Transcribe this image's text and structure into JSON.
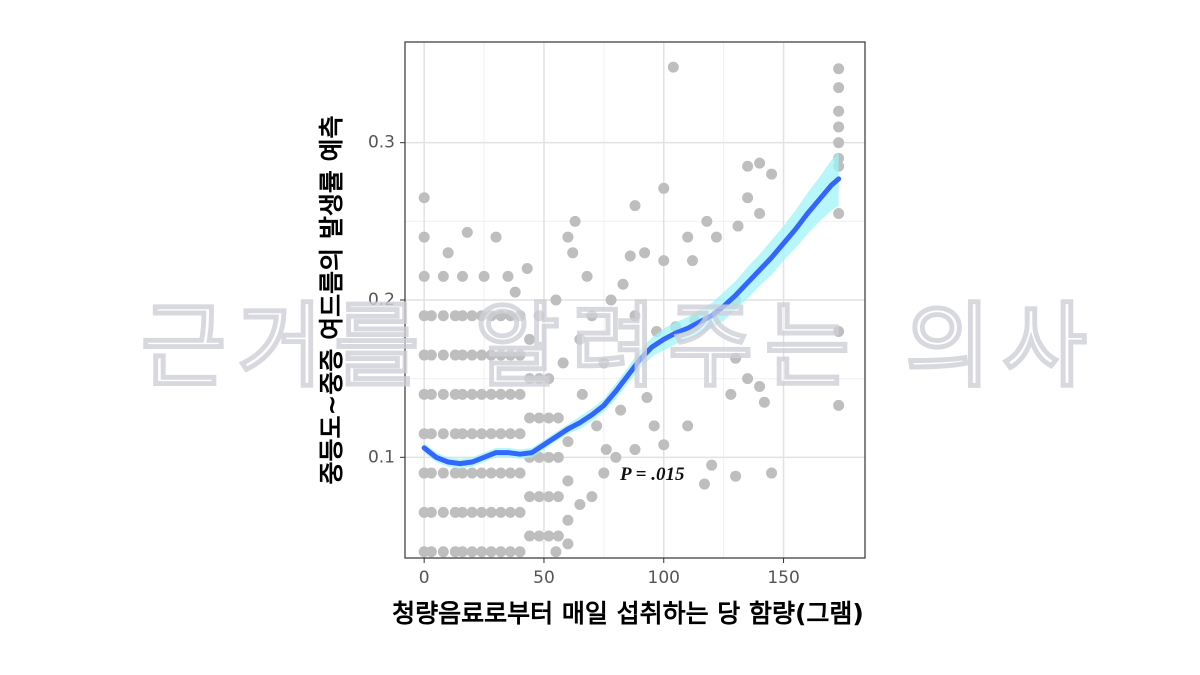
{
  "chart_data": {
    "type": "scatter",
    "x_label": "청량음료로부터 매일 섭취하는 당 함량(그램)",
    "y_label": "중등도~중증 여드름의 발생률 예측",
    "annotation": "P = .015",
    "watermark": "근거를 알려주는 의사",
    "xlim": [
      -8,
      184
    ],
    "ylim": [
      0.036,
      0.364
    ],
    "xticks": [
      0,
      50,
      100,
      150
    ],
    "yticks": [
      0.1,
      0.2,
      0.3
    ],
    "grid": true,
    "points": {
      "color": "#bebebe",
      "x": [
        0,
        0,
        0,
        0,
        0,
        0,
        0,
        0,
        0,
        3,
        3,
        3,
        3,
        3,
        3,
        3,
        8,
        8,
        8,
        8,
        8,
        8,
        8,
        8,
        13,
        13,
        13,
        13,
        13,
        13,
        13,
        16,
        16,
        16,
        16,
        16,
        16,
        16,
        16,
        20,
        20,
        20,
        20,
        20,
        20,
        20,
        24,
        24,
        24,
        24,
        24,
        24,
        24,
        28,
        28,
        28,
        28,
        28,
        28,
        28,
        32,
        32,
        32,
        32,
        32,
        32,
        32,
        36,
        36,
        36,
        36,
        36,
        36,
        36,
        40,
        40,
        40,
        40,
        40,
        40,
        40,
        44,
        44,
        44,
        44,
        44,
        44,
        48,
        48,
        48,
        48,
        48,
        52,
        52,
        52,
        52,
        52,
        56,
        56,
        56,
        56,
        60,
        60,
        60,
        104,
        173,
        173,
        173,
        173,
        173,
        173,
        173,
        173,
        173,
        173,
        140,
        135,
        135,
        140,
        145,
        131,
        100,
        88,
        118,
        122,
        110,
        92,
        100,
        112,
        86,
        130,
        113,
        105,
        97,
        78,
        83,
        88,
        130,
        128,
        140,
        135,
        142,
        110,
        100,
        88,
        120,
        130,
        145,
        117,
        96,
        82,
        93,
        75,
        70,
        65,
        60,
        62,
        55,
        63,
        68,
        72,
        80,
        75,
        70,
        65,
        60,
        55,
        43,
        30,
        25,
        18,
        0,
        10,
        35,
        48,
        38,
        58,
        66,
        76
      ],
      "values": [
        0.04,
        0.065,
        0.09,
        0.115,
        0.14,
        0.165,
        0.19,
        0.215,
        0.24,
        0.04,
        0.065,
        0.09,
        0.115,
        0.14,
        0.165,
        0.19,
        0.04,
        0.065,
        0.09,
        0.115,
        0.14,
        0.165,
        0.19,
        0.215,
        0.04,
        0.065,
        0.09,
        0.115,
        0.14,
        0.165,
        0.19,
        0.04,
        0.065,
        0.09,
        0.115,
        0.14,
        0.165,
        0.19,
        0.215,
        0.04,
        0.065,
        0.09,
        0.115,
        0.14,
        0.165,
        0.19,
        0.04,
        0.065,
        0.09,
        0.115,
        0.14,
        0.165,
        0.19,
        0.04,
        0.065,
        0.09,
        0.115,
        0.14,
        0.165,
        0.19,
        0.04,
        0.065,
        0.09,
        0.115,
        0.14,
        0.165,
        0.19,
        0.04,
        0.065,
        0.09,
        0.115,
        0.14,
        0.165,
        0.19,
        0.04,
        0.065,
        0.09,
        0.115,
        0.14,
        0.165,
        0.19,
        0.05,
        0.075,
        0.1,
        0.125,
        0.15,
        0.175,
        0.05,
        0.075,
        0.1,
        0.125,
        0.15,
        0.05,
        0.075,
        0.1,
        0.125,
        0.15,
        0.05,
        0.075,
        0.1,
        0.125,
        0.06,
        0.085,
        0.11,
        0.348,
        0.347,
        0.335,
        0.32,
        0.31,
        0.3,
        0.29,
        0.285,
        0.255,
        0.18,
        0.133,
        0.287,
        0.285,
        0.265,
        0.255,
        0.28,
        0.247,
        0.271,
        0.26,
        0.25,
        0.24,
        0.24,
        0.23,
        0.225,
        0.225,
        0.228,
        0.2,
        0.187,
        0.183,
        0.18,
        0.2,
        0.21,
        0.19,
        0.163,
        0.14,
        0.145,
        0.15,
        0.135,
        0.12,
        0.108,
        0.105,
        0.095,
        0.088,
        0.09,
        0.083,
        0.12,
        0.13,
        0.138,
        0.16,
        0.19,
        0.175,
        0.24,
        0.23,
        0.2,
        0.25,
        0.215,
        0.12,
        0.1,
        0.09,
        0.075,
        0.07,
        0.045,
        0.04,
        0.22,
        0.24,
        0.215,
        0.243,
        0.265,
        0.23,
        0.215,
        0.19,
        0.205,
        0.16,
        0.14,
        0.105
      ]
    },
    "smooth": {
      "color": "#3366ff",
      "band_color": "#9ff3f7",
      "x": [
        0,
        5,
        10,
        15,
        20,
        25,
        30,
        35,
        40,
        45,
        50,
        55,
        60,
        65,
        70,
        75,
        80,
        85,
        90,
        95,
        100,
        105,
        110,
        115,
        120,
        125,
        130,
        135,
        140,
        145,
        150,
        155,
        160,
        165,
        170,
        173
      ],
      "values": [
        0.106,
        0.1,
        0.097,
        0.096,
        0.097,
        0.1,
        0.103,
        0.103,
        0.102,
        0.103,
        0.108,
        0.113,
        0.118,
        0.122,
        0.127,
        0.133,
        0.142,
        0.152,
        0.162,
        0.17,
        0.175,
        0.179,
        0.182,
        0.186,
        0.19,
        0.196,
        0.203,
        0.211,
        0.219,
        0.227,
        0.236,
        0.245,
        0.255,
        0.264,
        0.273,
        0.277
      ],
      "lower": [
        0.103,
        0.097,
        0.094,
        0.093,
        0.094,
        0.097,
        0.1,
        0.1,
        0.099,
        0.1,
        0.105,
        0.11,
        0.115,
        0.118,
        0.123,
        0.129,
        0.137,
        0.147,
        0.156,
        0.164,
        0.168,
        0.172,
        0.175,
        0.178,
        0.182,
        0.187,
        0.194,
        0.201,
        0.209,
        0.216,
        0.225,
        0.233,
        0.242,
        0.25,
        0.257,
        0.26
      ],
      "upper": [
        0.109,
        0.103,
        0.1,
        0.099,
        0.1,
        0.103,
        0.106,
        0.106,
        0.105,
        0.106,
        0.111,
        0.116,
        0.121,
        0.126,
        0.131,
        0.137,
        0.147,
        0.157,
        0.168,
        0.176,
        0.182,
        0.186,
        0.189,
        0.194,
        0.198,
        0.205,
        0.212,
        0.221,
        0.229,
        0.238,
        0.247,
        0.257,
        0.268,
        0.278,
        0.289,
        0.294
      ]
    }
  }
}
